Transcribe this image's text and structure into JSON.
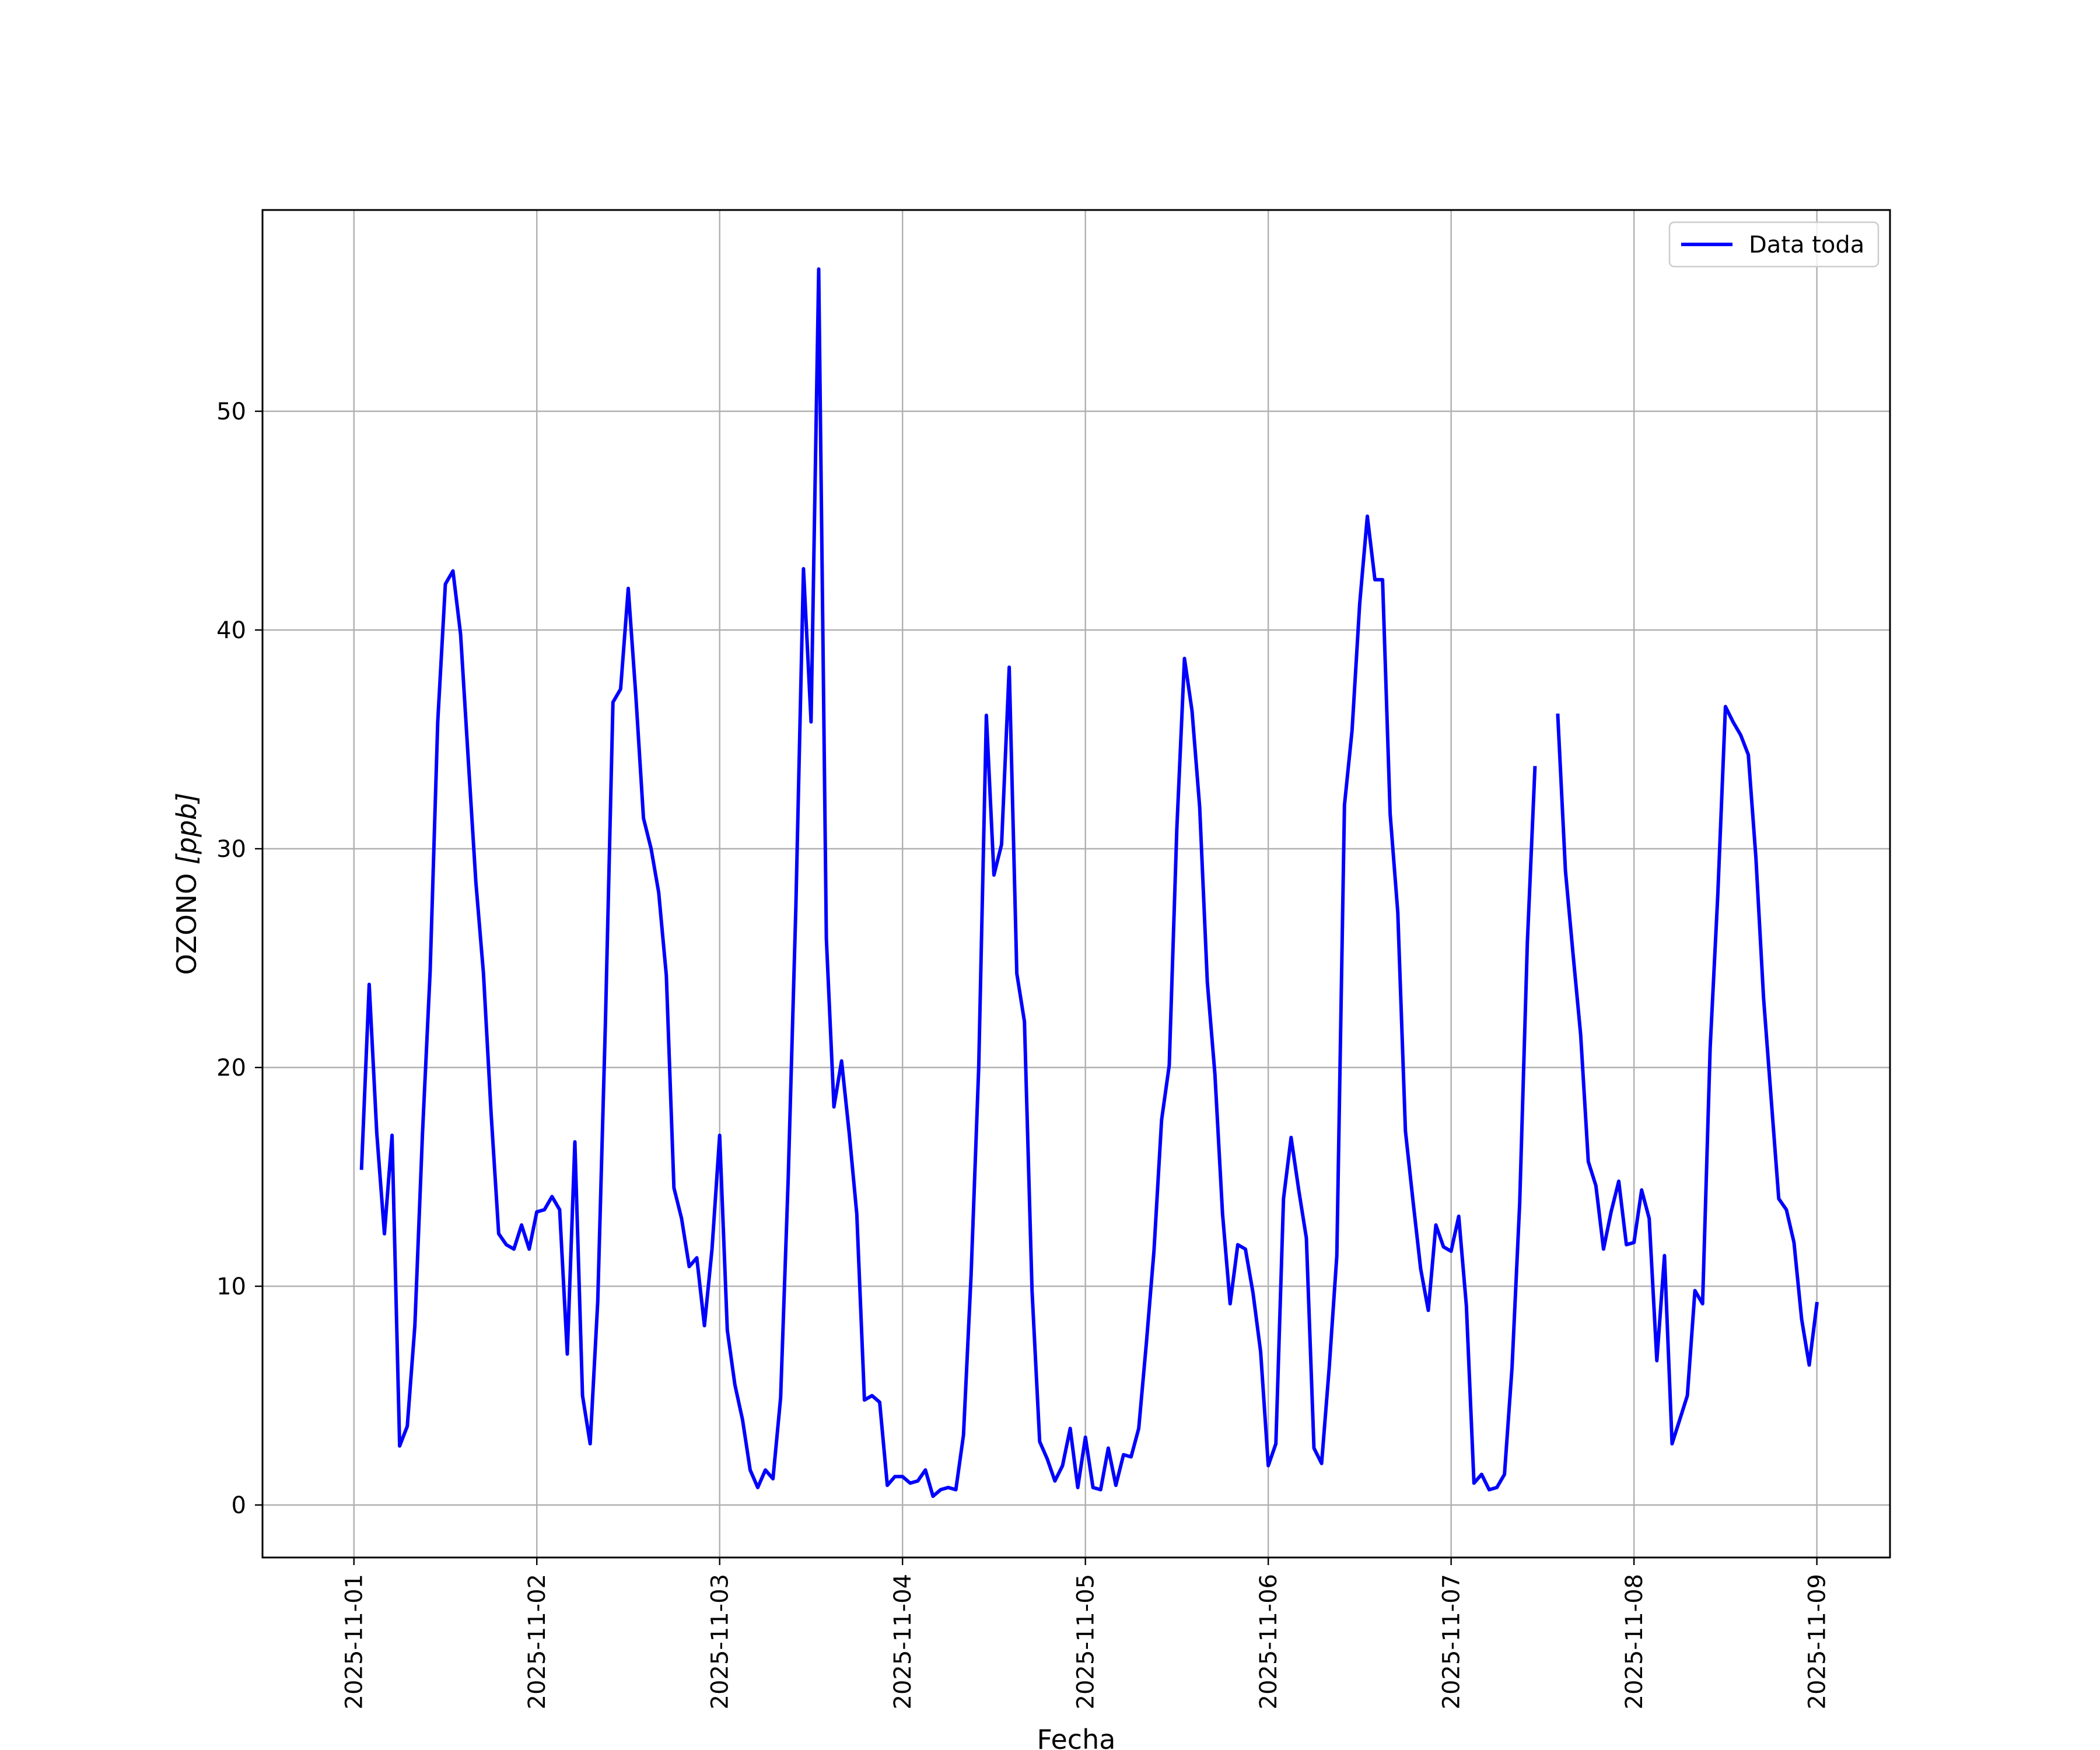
{
  "chart_data": {
    "type": "line",
    "title": "",
    "xlabel": "Fecha",
    "ylabel_main": "OZONO ",
    "ylabel_unit": "[ppb]",
    "x_ticks": [
      "2025-11-01",
      "2025-11-02",
      "2025-11-03",
      "2025-11-04",
      "2025-11-05",
      "2025-11-06",
      "2025-11-07",
      "2025-11-08",
      "2025-11-09"
    ],
    "y_ticks": [
      0,
      10,
      20,
      30,
      40,
      50
    ],
    "x_range": [
      "2025-10-31 12:00",
      "2025-11-09 09:36"
    ],
    "ylim": [
      -2.4,
      59.2
    ],
    "grid": true,
    "legend_position": "upper right",
    "series": [
      {
        "name": "Data toda",
        "color": "#0000ff",
        "points": [
          [
            "2025-11-01 01:00",
            15.4
          ],
          [
            "2025-11-01 02:00",
            23.8
          ],
          [
            "2025-11-01 03:00",
            17.0
          ],
          [
            "2025-11-01 04:00",
            12.4
          ],
          [
            "2025-11-01 05:00",
            16.9
          ],
          [
            "2025-11-01 06:00",
            2.7
          ],
          [
            "2025-11-01 07:00",
            3.6
          ],
          [
            "2025-11-01 08:00",
            8.2
          ],
          [
            "2025-11-01 09:00",
            17.0
          ],
          [
            "2025-11-01 10:00",
            24.4
          ],
          [
            "2025-11-01 11:00",
            35.8
          ],
          [
            "2025-11-01 12:00",
            42.1
          ],
          [
            "2025-11-01 13:00",
            42.7
          ],
          [
            "2025-11-01 14:00",
            39.8
          ],
          [
            "2025-11-01 15:00",
            34.1
          ],
          [
            "2025-11-01 16:00",
            28.5
          ],
          [
            "2025-11-01 17:00",
            24.3
          ],
          [
            "2025-11-01 18:00",
            17.9
          ],
          [
            "2025-11-01 19:00",
            12.4
          ],
          [
            "2025-11-01 20:00",
            11.9
          ],
          [
            "2025-11-01 21:00",
            11.7
          ],
          [
            "2025-11-01 22:00",
            12.8
          ],
          [
            "2025-11-01 23:00",
            11.7
          ],
          [
            "2025-11-02 00:00",
            13.4
          ],
          [
            "2025-11-02 01:00",
            13.5
          ],
          [
            "2025-11-02 02:00",
            14.1
          ],
          [
            "2025-11-02 03:00",
            13.5
          ],
          [
            "2025-11-02 04:00",
            6.9
          ],
          [
            "2025-11-02 05:00",
            16.6
          ],
          [
            "2025-11-02 06:00",
            5.0
          ],
          [
            "2025-11-02 07:00",
            2.8
          ],
          [
            "2025-11-02 08:00",
            9.3
          ],
          [
            "2025-11-02 09:00",
            22.0
          ],
          [
            "2025-11-02 10:00",
            36.7
          ],
          [
            "2025-11-02 11:00",
            37.3
          ],
          [
            "2025-11-02 12:00",
            41.9
          ],
          [
            "2025-11-02 13:00",
            37.0
          ],
          [
            "2025-11-02 14:00",
            31.4
          ],
          [
            "2025-11-02 15:00",
            30.0
          ],
          [
            "2025-11-02 16:00",
            28.0
          ],
          [
            "2025-11-02 17:00",
            24.2
          ],
          [
            "2025-11-02 18:00",
            14.5
          ],
          [
            "2025-11-02 19:00",
            13.1
          ],
          [
            "2025-11-02 20:00",
            10.9
          ],
          [
            "2025-11-02 21:00",
            11.3
          ],
          [
            "2025-11-02 22:00",
            8.2
          ],
          [
            "2025-11-02 23:00",
            11.7
          ],
          [
            "2025-11-03 00:00",
            16.9
          ],
          [
            "2025-11-03 01:00",
            8.0
          ],
          [
            "2025-11-03 02:00",
            5.5
          ],
          [
            "2025-11-03 03:00",
            3.9
          ],
          [
            "2025-11-03 04:00",
            1.6
          ],
          [
            "2025-11-03 05:00",
            0.8
          ],
          [
            "2025-11-03 06:00",
            1.6
          ],
          [
            "2025-11-03 07:00",
            1.2
          ],
          [
            "2025-11-03 08:00",
            4.9
          ],
          [
            "2025-11-03 09:00",
            15.0
          ],
          [
            "2025-11-03 10:00",
            27.3
          ],
          [
            "2025-11-03 11:00",
            42.8
          ],
          [
            "2025-11-03 12:00",
            35.8
          ],
          [
            "2025-11-03 13:00",
            56.5
          ],
          [
            "2025-11-03 14:00",
            25.9
          ],
          [
            "2025-11-03 15:00",
            18.2
          ],
          [
            "2025-11-03 16:00",
            20.3
          ],
          [
            "2025-11-03 17:00",
            17.0
          ],
          [
            "2025-11-03 18:00",
            13.3
          ],
          [
            "2025-11-03 19:00",
            4.8
          ],
          [
            "2025-11-03 20:00",
            5.0
          ],
          [
            "2025-11-03 21:00",
            4.7
          ],
          [
            "2025-11-03 22:00",
            0.9
          ],
          [
            "2025-11-03 23:00",
            1.3
          ],
          [
            "2025-11-04 00:00",
            1.3
          ],
          [
            "2025-11-04 01:00",
            1.0
          ],
          [
            "2025-11-04 02:00",
            1.1
          ],
          [
            "2025-11-04 03:00",
            1.6
          ],
          [
            "2025-11-04 04:00",
            0.4
          ],
          [
            "2025-11-04 05:00",
            0.7
          ],
          [
            "2025-11-04 06:00",
            0.8
          ],
          [
            "2025-11-04 07:00",
            0.7
          ],
          [
            "2025-11-04 08:00",
            3.2
          ],
          [
            "2025-11-04 09:00",
            10.5
          ],
          [
            "2025-11-04 10:00",
            20.0
          ],
          [
            "2025-11-04 11:00",
            36.1
          ],
          [
            "2025-11-04 12:00",
            28.8
          ],
          [
            "2025-11-04 13:00",
            30.2
          ],
          [
            "2025-11-04 14:00",
            38.3
          ],
          [
            "2025-11-04 15:00",
            24.3
          ],
          [
            "2025-11-04 16:00",
            22.1
          ],
          [
            "2025-11-04 17:00",
            9.8
          ],
          [
            "2025-11-04 18:00",
            2.9
          ],
          [
            "2025-11-04 19:00",
            2.1
          ],
          [
            "2025-11-04 20:00",
            1.1
          ],
          [
            "2025-11-04 21:00",
            1.8
          ],
          [
            "2025-11-04 22:00",
            3.5
          ],
          [
            "2025-11-04 23:00",
            0.8
          ],
          [
            "2025-11-05 00:00",
            3.1
          ],
          [
            "2025-11-05 01:00",
            0.8
          ],
          [
            "2025-11-05 02:00",
            0.7
          ],
          [
            "2025-11-05 03:00",
            2.6
          ],
          [
            "2025-11-05 04:00",
            0.9
          ],
          [
            "2025-11-05 05:00",
            2.3
          ],
          [
            "2025-11-05 06:00",
            2.2
          ],
          [
            "2025-11-05 07:00",
            3.5
          ],
          [
            "2025-11-05 08:00",
            7.4
          ],
          [
            "2025-11-05 09:00",
            11.6
          ],
          [
            "2025-11-05 10:00",
            17.6
          ],
          [
            "2025-11-05 11:00",
            20.1
          ],
          [
            "2025-11-05 12:00",
            30.9
          ],
          [
            "2025-11-05 13:00",
            38.7
          ],
          [
            "2025-11-05 14:00",
            36.3
          ],
          [
            "2025-11-05 15:00",
            31.9
          ],
          [
            "2025-11-05 16:00",
            23.9
          ],
          [
            "2025-11-05 17:00",
            19.7
          ],
          [
            "2025-11-05 18:00",
            13.3
          ],
          [
            "2025-11-05 19:00",
            9.2
          ],
          [
            "2025-11-05 20:00",
            11.9
          ],
          [
            "2025-11-05 21:00",
            11.7
          ],
          [
            "2025-11-05 22:00",
            9.7
          ],
          [
            "2025-11-05 23:00",
            7.0
          ],
          [
            "2025-11-06 00:00",
            1.8
          ],
          [
            "2025-11-06 01:00",
            2.8
          ],
          [
            "2025-11-06 02:00",
            14.0
          ],
          [
            "2025-11-06 03:00",
            16.8
          ],
          [
            "2025-11-06 04:00",
            14.4
          ],
          [
            "2025-11-06 05:00",
            12.2
          ],
          [
            "2025-11-06 06:00",
            2.6
          ],
          [
            "2025-11-06 07:00",
            1.9
          ],
          [
            "2025-11-06 08:00",
            6.3
          ],
          [
            "2025-11-06 09:00",
            11.4
          ],
          [
            "2025-11-06 10:00",
            32.0
          ],
          [
            "2025-11-06 11:00",
            35.4
          ],
          [
            "2025-11-06 12:00",
            41.2
          ],
          [
            "2025-11-06 13:00",
            45.2
          ],
          [
            "2025-11-06 14:00",
            42.3
          ],
          [
            "2025-11-06 15:00",
            42.3
          ],
          [
            "2025-11-06 16:00",
            31.6
          ],
          [
            "2025-11-06 17:00",
            27.1
          ],
          [
            "2025-11-06 18:00",
            17.1
          ],
          [
            "2025-11-06 19:00",
            13.9
          ],
          [
            "2025-11-06 20:00",
            10.8
          ],
          [
            "2025-11-06 21:00",
            8.9
          ],
          [
            "2025-11-06 22:00",
            12.8
          ],
          [
            "2025-11-06 23:00",
            11.8
          ],
          [
            "2025-11-07 00:00",
            11.6
          ],
          [
            "2025-11-07 01:00",
            13.2
          ],
          [
            "2025-11-07 02:00",
            9.1
          ],
          [
            "2025-11-07 03:00",
            1.0
          ],
          [
            "2025-11-07 04:00",
            1.4
          ],
          [
            "2025-11-07 05:00",
            0.7
          ],
          [
            "2025-11-07 06:00",
            0.8
          ],
          [
            "2025-11-07 07:00",
            1.4
          ],
          [
            "2025-11-07 08:00",
            6.3
          ],
          [
            "2025-11-07 09:00",
            13.8
          ],
          [
            "2025-11-07 10:00",
            25.7
          ],
          [
            "2025-11-07 11:00",
            33.7
          ],
          null,
          [
            "2025-11-07 14:00",
            36.1
          ],
          [
            "2025-11-07 15:00",
            29.0
          ],
          [
            "2025-11-07 16:00",
            25.2
          ],
          [
            "2025-11-07 17:00",
            21.5
          ],
          [
            "2025-11-07 18:00",
            15.7
          ],
          [
            "2025-11-07 19:00",
            14.6
          ],
          [
            "2025-11-07 20:00",
            11.7
          ],
          [
            "2025-11-07 21:00",
            13.4
          ],
          [
            "2025-11-07 22:00",
            14.8
          ],
          [
            "2025-11-07 23:00",
            11.9
          ],
          [
            "2025-11-08 00:00",
            12.0
          ],
          [
            "2025-11-08 01:00",
            14.4
          ],
          [
            "2025-11-08 02:00",
            13.1
          ],
          [
            "2025-11-08 03:00",
            6.6
          ],
          [
            "2025-11-08 04:00",
            11.4
          ],
          [
            "2025-11-08 05:00",
            2.8
          ],
          [
            "2025-11-08 06:00",
            3.9
          ],
          [
            "2025-11-08 07:00",
            5.0
          ],
          [
            "2025-11-08 08:00",
            9.8
          ],
          [
            "2025-11-08 09:00",
            9.2
          ],
          [
            "2025-11-08 10:00",
            20.9
          ],
          [
            "2025-11-08 11:00",
            27.9
          ],
          [
            "2025-11-08 12:00",
            36.5
          ],
          [
            "2025-11-08 13:00",
            35.8
          ],
          [
            "2025-11-08 14:00",
            35.2
          ],
          [
            "2025-11-08 15:00",
            34.3
          ],
          [
            "2025-11-08 16:00",
            29.6
          ],
          [
            "2025-11-08 17:00",
            23.2
          ],
          [
            "2025-11-08 18:00",
            18.6
          ],
          [
            "2025-11-08 19:00",
            14.0
          ],
          [
            "2025-11-08 20:00",
            13.5
          ],
          [
            "2025-11-08 21:00",
            12.0
          ],
          [
            "2025-11-08 22:00",
            8.5
          ],
          [
            "2025-11-08 23:00",
            6.4
          ],
          [
            "2025-11-09 00:00",
            9.2
          ]
        ]
      }
    ]
  }
}
